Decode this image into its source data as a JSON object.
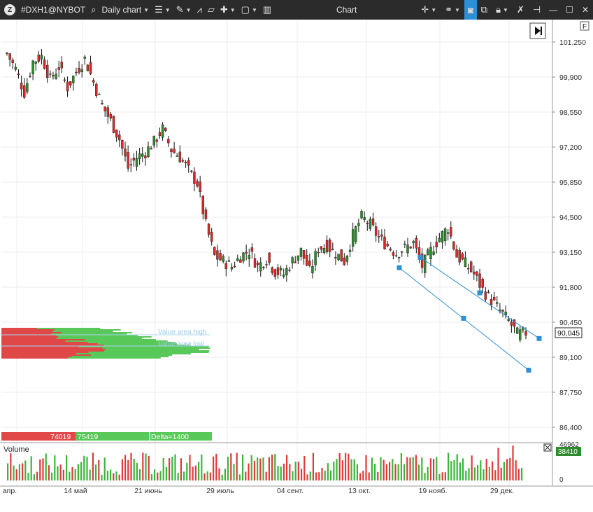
{
  "window": {
    "symbol": "#DXH1@NYBOT",
    "timeframe": "Daily chart",
    "title": "Chart",
    "minimize": "—",
    "maximize": "☐",
    "close": "✕"
  },
  "toolbar_icons": [
    "search-icon",
    "list-icon",
    "pencil-icon",
    "indicator-icon",
    "template-icon",
    "crosshair-icon",
    "layout-icon",
    "layers-icon"
  ],
  "right_icons": [
    "cursor-icon",
    "link-icon",
    "camera-icon",
    "windows-icon",
    "lock-icon",
    "tools-icon",
    "pin-icon"
  ],
  "price_axis": {
    "labels": [
      "101,250",
      "99,900",
      "98,550",
      "97,200",
      "95,850",
      "94,500",
      "93,150",
      "91,800",
      "90,450",
      "89,100",
      "87,750",
      "86,400"
    ],
    "current_price": "90,045",
    "corner_label": "F"
  },
  "time_axis": {
    "labels": [
      "апр.",
      "14 май",
      "21 июнь",
      "29 июль",
      "04 сент.",
      "13 окт.",
      "19 нояб.",
      "29 дек."
    ]
  },
  "profile": {
    "value_area_high": "Value area high",
    "value_area_low": "Value area low",
    "delta_sell": "74019",
    "delta_buy": "75419",
    "delta_label": "Delta=1400"
  },
  "volume_panel": {
    "title": "Volume",
    "max_label": "46962",
    "zero_label": "0",
    "current_volume": "38410"
  },
  "colors": {
    "up": "#2e8b2e",
    "down": "#d62b2b",
    "volume_up": "#3cb43c",
    "volume_down": "#e03a3a",
    "channel": "#2d8fd6",
    "topbar": "#2b2b2b"
  },
  "chart_data": {
    "type": "candlestick",
    "y_range": [
      85500,
      102000
    ],
    "series_approx_closes": [
      100800,
      100200,
      99300,
      100500,
      100700,
      99800,
      100300,
      99500,
      100100,
      100600,
      99700,
      98800,
      98200,
      97500,
      96400,
      96800,
      97000,
      97400,
      97900,
      97100,
      96800,
      96300,
      95800,
      94200,
      93000,
      92800,
      92600,
      93000,
      93200,
      92600,
      92900,
      92400,
      92300,
      92800,
      93200,
      92400,
      93300,
      93400,
      93100,
      92800,
      93800,
      94500,
      94200,
      93700,
      93400,
      93100,
      93300,
      93500,
      92600,
      93200,
      93700,
      94100,
      93000,
      92700,
      92300,
      91700,
      91300,
      90900,
      90500,
      90000,
      90045
    ],
    "channel": {
      "upper": [
        [
          92900,
          "19 нояб."
        ],
        [
          90045,
          "end"
        ]
      ],
      "note": ""
    }
  }
}
